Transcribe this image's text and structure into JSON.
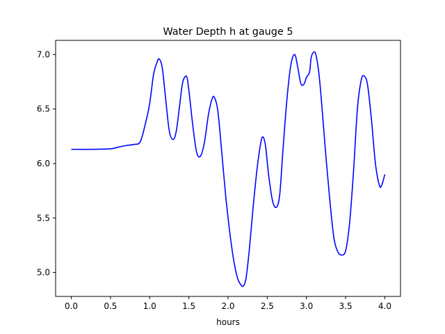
{
  "chart_data": {
    "type": "line",
    "title": "Water Depth h at gauge 5",
    "xlabel": "hours",
    "ylabel": "",
    "xlim": [
      -0.2,
      4.2
    ],
    "ylim": [
      4.78,
      7.13
    ],
    "grid": false,
    "legend": "none",
    "x_ticks": [
      0.0,
      0.5,
      1.0,
      1.5,
      2.0,
      2.5,
      3.0,
      3.5,
      4.0
    ],
    "x_tick_labels": [
      "0.0",
      "0.5",
      "1.0",
      "1.5",
      "2.0",
      "2.5",
      "3.0",
      "3.5",
      "4.0"
    ],
    "y_ticks": [
      5.0,
      5.5,
      6.0,
      6.5,
      7.0
    ],
    "y_tick_labels": [
      "5.0",
      "5.5",
      "6.0",
      "6.5",
      "7.0"
    ],
    "series": [
      {
        "color": "#0000ff",
        "x": [
          0.0,
          0.25,
          0.5,
          0.6,
          0.7,
          0.8,
          0.88,
          0.95,
          1.0,
          1.05,
          1.09,
          1.12,
          1.16,
          1.2,
          1.25,
          1.3,
          1.34,
          1.38,
          1.42,
          1.47,
          1.5,
          1.55,
          1.6,
          1.65,
          1.7,
          1.75,
          1.8,
          1.83,
          1.87,
          1.92,
          1.97,
          2.02,
          2.07,
          2.12,
          2.17,
          2.2,
          2.23,
          2.27,
          2.32,
          2.37,
          2.42,
          2.45,
          2.48,
          2.52,
          2.57,
          2.62,
          2.66,
          2.7,
          2.75,
          2.8,
          2.85,
          2.89,
          2.93,
          2.97,
          3.0,
          3.04,
          3.06,
          3.09,
          3.12,
          3.16,
          3.2,
          3.25,
          3.3,
          3.35,
          3.4,
          3.45,
          3.5,
          3.55,
          3.6,
          3.65,
          3.7,
          3.74,
          3.78,
          3.83,
          3.88,
          3.93,
          3.96,
          4.0
        ],
        "y": [
          6.13,
          6.13,
          6.135,
          6.15,
          6.165,
          6.175,
          6.2,
          6.38,
          6.55,
          6.82,
          6.92,
          6.96,
          6.88,
          6.62,
          6.3,
          6.22,
          6.3,
          6.52,
          6.74,
          6.8,
          6.67,
          6.35,
          6.1,
          6.07,
          6.2,
          6.45,
          6.6,
          6.6,
          6.48,
          6.1,
          5.7,
          5.38,
          5.12,
          4.95,
          4.88,
          4.88,
          4.95,
          5.2,
          5.6,
          5.95,
          6.2,
          6.24,
          6.15,
          5.88,
          5.65,
          5.6,
          5.72,
          6.12,
          6.58,
          6.9,
          7.0,
          6.88,
          6.73,
          6.73,
          6.79,
          6.84,
          6.97,
          7.02,
          7.0,
          6.82,
          6.5,
          6.05,
          5.65,
          5.32,
          5.19,
          5.16,
          5.2,
          5.45,
          5.92,
          6.5,
          6.77,
          6.8,
          6.72,
          6.4,
          6.0,
          5.8,
          5.8,
          5.9
        ]
      }
    ]
  }
}
